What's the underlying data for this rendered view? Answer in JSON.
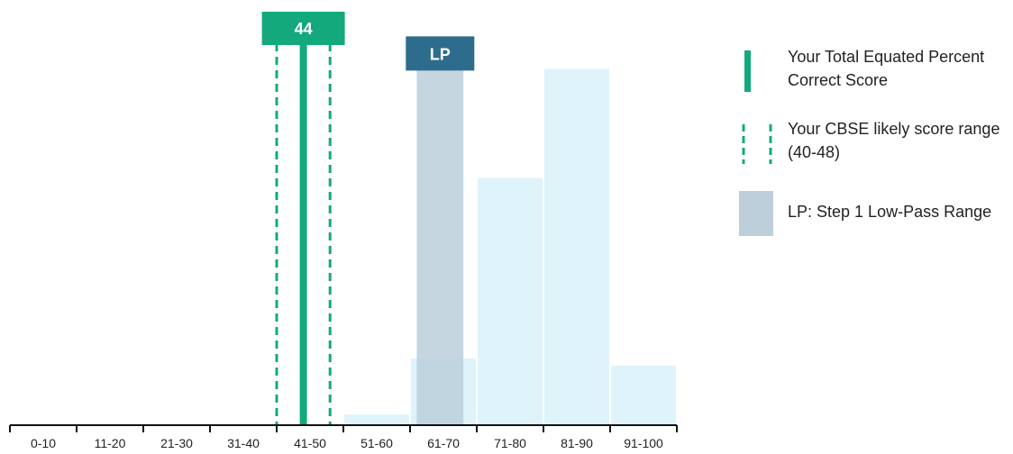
{
  "chart_data": {
    "type": "bar",
    "categories": [
      "0-10",
      "11-20",
      "21-30",
      "31-40",
      "41-50",
      "51-60",
      "61-70",
      "71-80",
      "81-90",
      "91-100"
    ],
    "values": [
      0,
      0,
      0,
      0,
      0,
      1.8,
      11.2,
      41.5,
      59.8,
      10.0
    ],
    "ylim": [
      0,
      65
    ],
    "bar_color": "#dff4fa",
    "score_marker": {
      "value": 44,
      "label": "44",
      "color": "#14a97c"
    },
    "likely_range": {
      "low": 40,
      "high": 48,
      "color": "#14a97c"
    },
    "low_pass_range": {
      "low": 61,
      "high": 68,
      "label": "LP",
      "band_color": "#bccfdb",
      "label_color": "#2e6c8e",
      "top_value": 59.5
    }
  },
  "legend": {
    "items": [
      {
        "text": "Your Total Equated Percent Correct Score"
      },
      {
        "text": "Your CBSE likely score range (40-48)"
      },
      {
        "text": "LP: Step 1 Low-Pass Range"
      }
    ]
  }
}
